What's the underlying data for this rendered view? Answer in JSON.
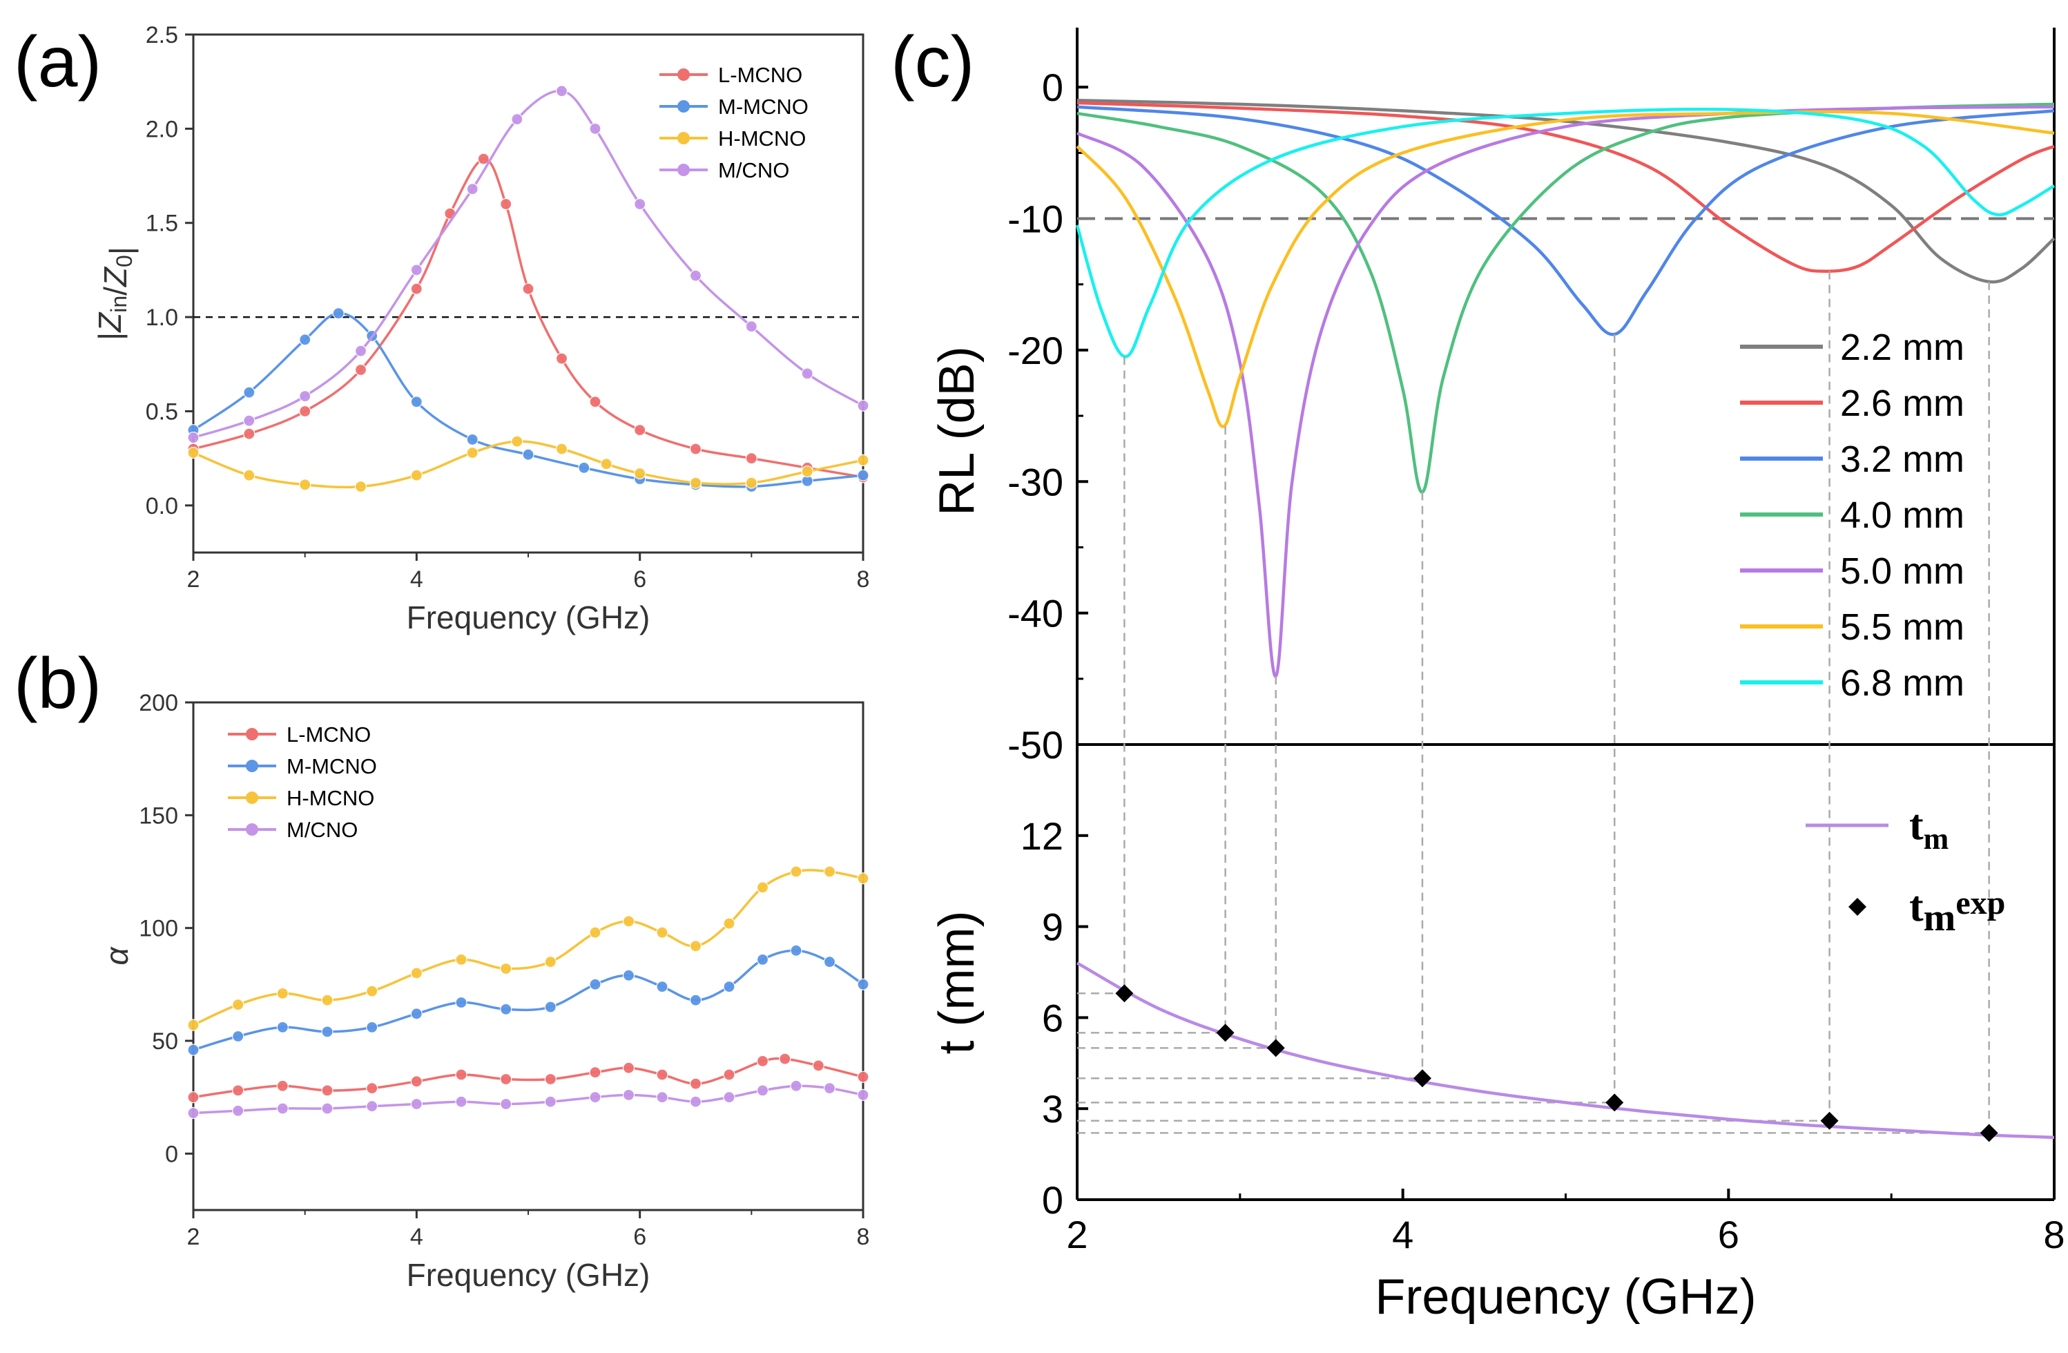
{
  "figure": {
    "panels": [
      {
        "label": "(a)"
      },
      {
        "label": "(b)"
      },
      {
        "label": "(c)"
      }
    ]
  },
  "colors": {
    "L-MCNO": "#ef6f6f",
    "M-MCNO": "#5a95e6",
    "H-MCNO": "#f7c33a",
    "M/CNO": "#c494e8",
    "2.2 mm": "#7f7f7f",
    "2.6 mm": "#f05656",
    "3.2 mm": "#4f86e8",
    "4.0 mm": "#4fc07e",
    "5.0 mm": "#b77ae2",
    "5.5 mm": "#fbbf22",
    "6.8 mm": "#19f0ee",
    "tm": "#b98ae6"
  },
  "chart_data": [
    {
      "id": "a",
      "type": "line",
      "title": "",
      "xlabel": "Frequency (GHz)",
      "ylabel": "|Z_in/Z_0|",
      "xlim": [
        2,
        8
      ],
      "ylim": [
        -0.25,
        2.5
      ],
      "xticks": [
        "2",
        "4",
        "6",
        "8"
      ],
      "yticks": [
        "0.0",
        "0.5",
        "1.0",
        "1.5",
        "2.0",
        "2.5"
      ],
      "reference_line": {
        "y": 1.0,
        "style": "dashed"
      },
      "legend": [
        "L-MCNO",
        "M-MCNO",
        "H-MCNO",
        "M/CNO"
      ],
      "series": [
        {
          "name": "L-MCNO",
          "x": [
            2,
            2.5,
            3,
            3.5,
            4,
            4.3,
            4.6,
            4.8,
            5,
            5.3,
            5.6,
            6,
            6.5,
            7,
            7.5,
            8
          ],
          "values": [
            0.3,
            0.38,
            0.5,
            0.72,
            1.15,
            1.55,
            1.84,
            1.6,
            1.15,
            0.78,
            0.55,
            0.4,
            0.3,
            0.25,
            0.2,
            0.15
          ]
        },
        {
          "name": "M-MCNO",
          "x": [
            2,
            2.5,
            3,
            3.3,
            3.6,
            4,
            4.5,
            5,
            5.5,
            6,
            6.5,
            7,
            7.5,
            8
          ],
          "values": [
            0.4,
            0.6,
            0.88,
            1.02,
            0.9,
            0.55,
            0.35,
            0.27,
            0.2,
            0.14,
            0.11,
            0.1,
            0.13,
            0.16
          ]
        },
        {
          "name": "H-MCNO",
          "x": [
            2,
            2.5,
            3,
            3.5,
            4,
            4.5,
            4.9,
            5.3,
            5.7,
            6,
            6.5,
            7,
            7.5,
            8
          ],
          "values": [
            0.28,
            0.16,
            0.11,
            0.1,
            0.16,
            0.28,
            0.34,
            0.3,
            0.22,
            0.17,
            0.12,
            0.12,
            0.18,
            0.24
          ]
        },
        {
          "name": "M/CNO",
          "x": [
            2,
            2.5,
            3,
            3.5,
            4,
            4.5,
            4.9,
            5.3,
            5.6,
            6,
            6.5,
            7,
            7.5,
            8
          ],
          "values": [
            0.36,
            0.45,
            0.58,
            0.82,
            1.25,
            1.68,
            2.05,
            2.2,
            2.0,
            1.6,
            1.22,
            0.95,
            0.7,
            0.53
          ]
        }
      ]
    },
    {
      "id": "b",
      "type": "line",
      "title": "",
      "xlabel": "Frequency (GHz)",
      "ylabel": "α",
      "xlim": [
        2,
        8
      ],
      "ylim": [
        -25,
        200
      ],
      "xticks": [
        "2",
        "4",
        "6",
        "8"
      ],
      "yticks": [
        "0",
        "50",
        "100",
        "150",
        "200"
      ],
      "legend": [
        "L-MCNO",
        "M-MCNO",
        "H-MCNO",
        "M/CNO"
      ],
      "series": [
        {
          "name": "L-MCNO",
          "x": [
            2,
            2.4,
            2.8,
            3.2,
            3.6,
            4,
            4.4,
            4.8,
            5.2,
            5.6,
            5.9,
            6.2,
            6.5,
            6.8,
            7.1,
            7.3,
            7.6,
            8
          ],
          "values": [
            25,
            28,
            30,
            28,
            29,
            32,
            35,
            33,
            33,
            36,
            38,
            35,
            31,
            35,
            41,
            42,
            39,
            34
          ]
        },
        {
          "name": "M-MCNO",
          "x": [
            2,
            2.4,
            2.8,
            3.2,
            3.6,
            4,
            4.4,
            4.8,
            5.2,
            5.6,
            5.9,
            6.2,
            6.5,
            6.8,
            7.1,
            7.4,
            7.7,
            8
          ],
          "values": [
            46,
            52,
            56,
            54,
            56,
            62,
            67,
            64,
            65,
            75,
            79,
            74,
            68,
            74,
            86,
            90,
            85,
            75
          ]
        },
        {
          "name": "H-MCNO",
          "x": [
            2,
            2.4,
            2.8,
            3.2,
            3.6,
            4,
            4.4,
            4.8,
            5.2,
            5.6,
            5.9,
            6.2,
            6.5,
            6.8,
            7.1,
            7.4,
            7.7,
            8
          ],
          "values": [
            57,
            66,
            71,
            68,
            72,
            80,
            86,
            82,
            85,
            98,
            103,
            98,
            92,
            102,
            118,
            125,
            125,
            122
          ]
        },
        {
          "name": "M/CNO",
          "x": [
            2,
            2.4,
            2.8,
            3.2,
            3.6,
            4,
            4.4,
            4.8,
            5.2,
            5.6,
            5.9,
            6.2,
            6.5,
            6.8,
            7.1,
            7.4,
            7.7,
            8
          ],
          "values": [
            18,
            19,
            20,
            20,
            21,
            22,
            23,
            22,
            23,
            25,
            26,
            25,
            23,
            25,
            28,
            30,
            29,
            26
          ]
        }
      ]
    },
    {
      "id": "c-top",
      "type": "line",
      "title": "",
      "xlabel": "",
      "ylabel": "RL (dB)",
      "xlim": [
        2,
        8
      ],
      "ylim": [
        -50,
        4
      ],
      "yticks": [
        "0",
        "-10",
        "-20",
        "-30",
        "-40",
        "-50"
      ],
      "reference_line": {
        "y": -10,
        "style": "dashed"
      },
      "legend": [
        "2.2 mm",
        "2.6 mm",
        "3.2 mm",
        "4.0 mm",
        "5.0 mm",
        "5.5 mm",
        "6.8 mm"
      ],
      "series": [
        {
          "name": "2.2 mm",
          "x": [
            2,
            3,
            4,
            5,
            6,
            6.6,
            7,
            7.3,
            7.6,
            7.8,
            8
          ],
          "values": [
            -1.0,
            -1.3,
            -1.8,
            -2.6,
            -4.2,
            -6.0,
            -9.0,
            -13.0,
            -14.8,
            -13.8,
            -11.5
          ]
        },
        {
          "name": "2.6 mm",
          "x": [
            2,
            3,
            4,
            4.8,
            5.5,
            6,
            6.4,
            6.6,
            6.8,
            7,
            7.4,
            7.8,
            8
          ],
          "values": [
            -1.2,
            -1.6,
            -2.2,
            -3.3,
            -6.0,
            -10.5,
            -13.5,
            -14.0,
            -13.6,
            -12.0,
            -8.5,
            -5.5,
            -4.5
          ]
        },
        {
          "name": "3.2 mm",
          "x": [
            2,
            3,
            3.8,
            4.3,
            4.8,
            5.1,
            5.3,
            5.5,
            5.8,
            6.2,
            7,
            8
          ],
          "values": [
            -1.5,
            -2.4,
            -4.5,
            -7.5,
            -12.0,
            -16.5,
            -18.8,
            -15.5,
            -10.0,
            -6.0,
            -3.0,
            -1.8
          ]
        },
        {
          "name": "4.0 mm",
          "x": [
            2,
            2.5,
            3,
            3.5,
            3.8,
            4.0,
            4.12,
            4.25,
            4.5,
            5,
            5.5,
            6,
            7,
            8
          ],
          "values": [
            -2.0,
            -3.0,
            -4.5,
            -8.0,
            -14.0,
            -23.0,
            -30.8,
            -22.0,
            -13.5,
            -6.5,
            -3.5,
            -2.3,
            -1.6,
            -1.3
          ]
        },
        {
          "name": "5.0 mm",
          "x": [
            2,
            2.4,
            2.8,
            3.0,
            3.12,
            3.22,
            3.32,
            3.5,
            3.8,
            4.2,
            5,
            6,
            7,
            8
          ],
          "values": [
            -3.5,
            -6.0,
            -13.0,
            -21.0,
            -32.0,
            -44.8,
            -30.0,
            -18.5,
            -10.5,
            -6.0,
            -3.0,
            -2.0,
            -1.6,
            -1.5
          ]
        },
        {
          "name": "5.5 mm",
          "x": [
            2,
            2.3,
            2.6,
            2.8,
            2.9,
            3.0,
            3.2,
            3.5,
            4,
            5,
            6,
            7,
            8
          ],
          "values": [
            -4.5,
            -8.5,
            -16.0,
            -23.0,
            -25.8,
            -22.0,
            -15.0,
            -9.0,
            -5.0,
            -2.5,
            -2.0,
            -2.0,
            -3.5
          ]
        },
        {
          "name": "6.8 mm",
          "x": [
            2,
            2.15,
            2.3,
            2.45,
            2.7,
            3.2,
            4,
            5,
            6,
            6.8,
            7.2,
            7.5,
            7.65,
            7.8,
            8
          ],
          "values": [
            -10.5,
            -17.0,
            -20.5,
            -16.5,
            -10.0,
            -5.5,
            -3.0,
            -2.0,
            -1.7,
            -2.5,
            -4.5,
            -8.5,
            -9.7,
            -9.0,
            -7.5
          ]
        }
      ]
    },
    {
      "id": "c-bottom",
      "type": "scatter",
      "title": "",
      "xlabel": "Frequency (GHz)",
      "ylabel": "t (mm)",
      "xlim": [
        2,
        8
      ],
      "ylim": [
        0,
        15
      ],
      "xticks": [
        "2",
        "4",
        "6",
        "8"
      ],
      "yticks": [
        "0",
        "3",
        "6",
        "9",
        "12"
      ],
      "legend": [
        {
          "main": "t",
          "sub": "m",
          "sup": ""
        },
        {
          "main": "t",
          "sub": "m",
          "sup": "exp"
        }
      ],
      "series": [
        {
          "name": "tm",
          "kind": "line",
          "x": [
            2,
            2.5,
            3,
            3.5,
            4,
            4.5,
            5,
            5.5,
            6,
            6.5,
            7,
            7.5,
            8
          ],
          "values": [
            7.8,
            6.3,
            5.3,
            4.55,
            4.0,
            3.55,
            3.2,
            2.9,
            2.65,
            2.45,
            2.3,
            2.15,
            2.05
          ]
        },
        {
          "name": "tmexp",
          "kind": "markers",
          "x": [
            2.29,
            2.91,
            3.22,
            4.12,
            5.3,
            6.62,
            7.6
          ],
          "values": [
            6.8,
            5.5,
            5.0,
            4.0,
            3.2,
            2.6,
            2.2
          ]
        }
      ],
      "guide_lines": {
        "vertical_x": [
          2.29,
          2.91,
          3.22,
          4.12,
          5.3,
          6.62,
          7.6
        ],
        "horizontal_y": [
          6.8,
          5.5,
          5.0,
          4.0,
          3.2,
          2.6,
          2.2
        ]
      }
    }
  ]
}
